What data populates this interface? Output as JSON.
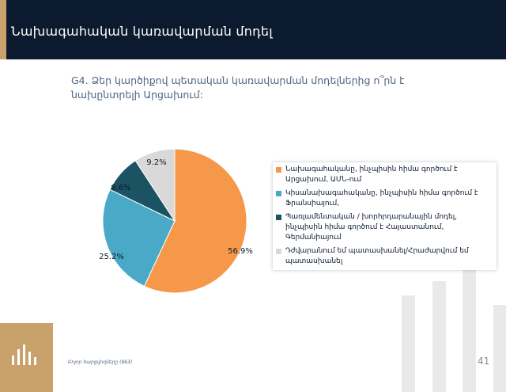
{
  "header": {
    "title": "Նախագահական կառավարման մոդել"
  },
  "question": "G4. Ձեր կարծիքով պետական կառավարման մոդելներից ո՞րն է նախընտրելի Արցախում:",
  "source": "Բոլոր հարցվողները (863)",
  "page_number": "41",
  "colors": {
    "header_bg": "#0b1a2e",
    "accent": "#c9a16a",
    "slice_orange": "#f5984a",
    "slice_blue": "#4aa9c6",
    "slice_dark": "#1c5363",
    "slice_grey": "#d9d9d9"
  },
  "chart_data": {
    "type": "pie",
    "series": [
      {
        "name": "Նախագահականը, ինչպիսին հիմա գործում է Արցախում, ԱՄՆ-ում",
        "label": "56.9%",
        "value": 56.9,
        "color": "#f5984a"
      },
      {
        "name": "Կիսանախագահականը, ինչպիսին հիմա գործում է Ֆրանսիայում,",
        "label": "25.2%",
        "value": 25.2,
        "color": "#4aa9c6"
      },
      {
        "name": "Պառլամենտական / խորհրդարանային մոդել, ինչպիսին հիմա գործում է Հայաստանում, Գերմանիայում",
        "label": "8.6%",
        "value": 8.6,
        "color": "#1c5363"
      },
      {
        "name": "Դժվարանում եմ պատասխանել/Հրաժարվում եմ պատասխանել",
        "label": "9.2%",
        "value": 9.2,
        "color": "#d9d9d9"
      }
    ],
    "legend_position": "right"
  }
}
